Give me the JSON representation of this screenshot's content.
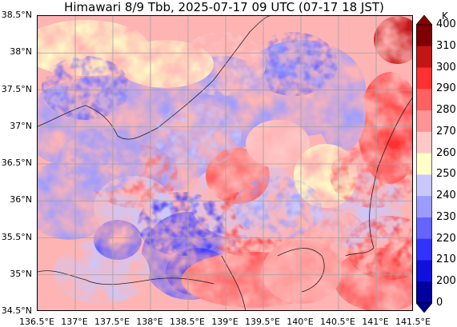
{
  "title": "Himawari 8/9 Tbb, 2025-07-17 09 UTC (07-17 18 JST)",
  "map": {
    "lon_range": [
      136.5,
      141.5
    ],
    "lat_range": [
      34.5,
      38.5
    ],
    "gridlines": true,
    "lat_labels": [
      "38.5°N",
      "38°N",
      "37.5°N",
      "37°N",
      "36.5°N",
      "36°N",
      "35.5°N",
      "35°N",
      "34.5°N"
    ],
    "lon_labels": [
      "136.5°E",
      "137°E",
      "137.5°E",
      "138°E",
      "138.5°E",
      "139°E",
      "139.5°E",
      "140°E",
      "140.5°E",
      "141°E",
      "141.5°E"
    ]
  },
  "colorbar": {
    "unit": "K",
    "labels": [
      "400",
      "310",
      "300",
      "290",
      "280",
      "270",
      "260",
      "250",
      "240",
      "230",
      "220",
      "210",
      "200",
      "0"
    ],
    "colors": [
      "#7f0000",
      "#c41515",
      "#ff3030",
      "#ff6060",
      "#ff9494",
      "#ffc8c8",
      "#ffffc8",
      "#c8c8ff",
      "#9c9cff",
      "#6464ff",
      "#3232ff",
      "#1010dc",
      "#00009c"
    ],
    "extend_top_color": "#8b0000",
    "extend_bottom_color": "#00008b"
  }
}
